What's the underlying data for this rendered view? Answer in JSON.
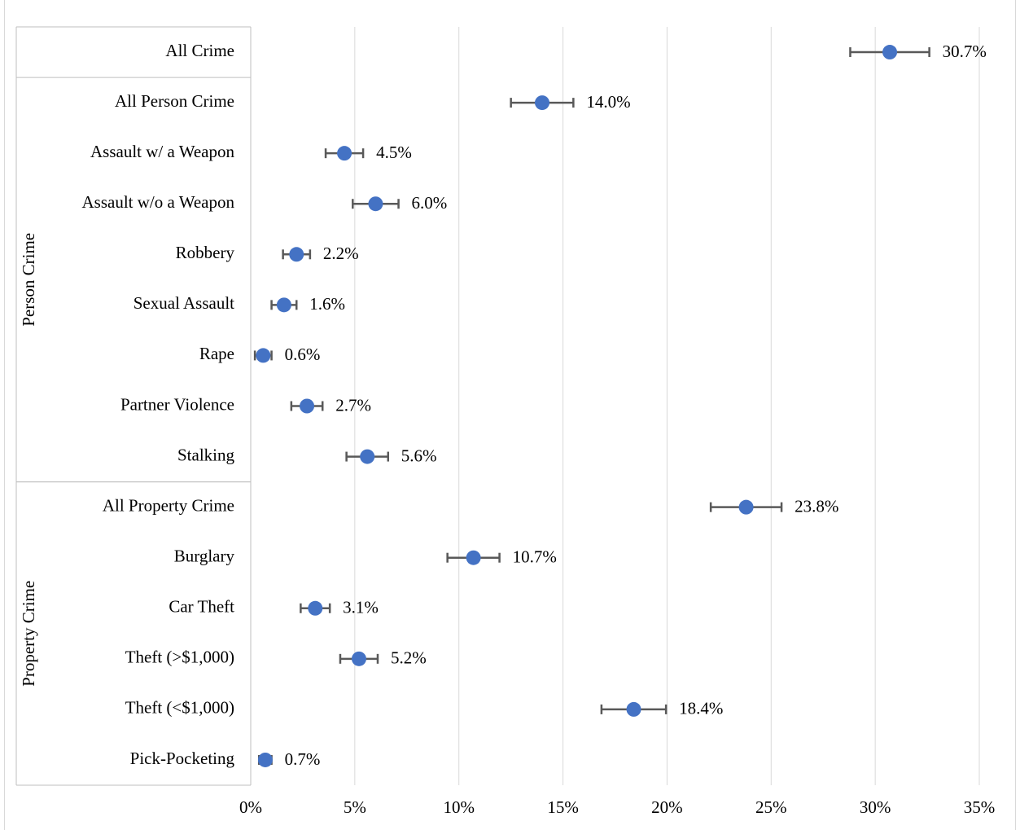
{
  "chart_data": {
    "type": "dot",
    "categories": [
      "All Crime",
      "All Person Crime",
      "Assault w/ a Weapon",
      "Assault w/o a Weapon",
      "Robbery",
      "Sexual Assault",
      "Rape",
      "Partner Violence",
      "Stalking",
      "All Property Crime",
      "Burglary",
      "Car Theft",
      "Theft (>$1,000)",
      "Theft (<$1,000)",
      "Pick-Pocketing"
    ],
    "values": [
      30.7,
      14.0,
      4.5,
      6.0,
      2.2,
      1.6,
      0.6,
      2.7,
      5.6,
      23.8,
      10.7,
      3.1,
      5.2,
      18.4,
      0.7
    ],
    "value_labels": [
      "30.7%",
      "14.0%",
      "4.5%",
      "6.0%",
      "2.2%",
      "1.6%",
      "0.6%",
      "2.7%",
      "5.6%",
      "23.8%",
      "10.7%",
      "3.1%",
      "5.2%",
      "18.4%",
      "0.7%"
    ],
    "errors": [
      1.9,
      1.5,
      0.9,
      1.1,
      0.65,
      0.6,
      0.4,
      0.75,
      1.0,
      1.7,
      1.25,
      0.7,
      0.9,
      1.55,
      0.3
    ],
    "groups": [
      {
        "name": "Person Crime",
        "start": 1,
        "end": 8
      },
      {
        "name": "Property Crime",
        "start": 9,
        "end": 14
      }
    ],
    "color": "#4472c4",
    "error_color": "#595959",
    "xlim": [
      0,
      35
    ],
    "xticks": [
      {
        "value": 0,
        "label": "0%"
      },
      {
        "value": 5,
        "label": "5%"
      },
      {
        "value": 10,
        "label": "10%"
      },
      {
        "value": 15,
        "label": "15%"
      },
      {
        "value": 20,
        "label": "20%"
      },
      {
        "value": 25,
        "label": "25%"
      },
      {
        "value": 30,
        "label": "30%"
      },
      {
        "value": 35,
        "label": "35%"
      }
    ],
    "grid": true
  }
}
